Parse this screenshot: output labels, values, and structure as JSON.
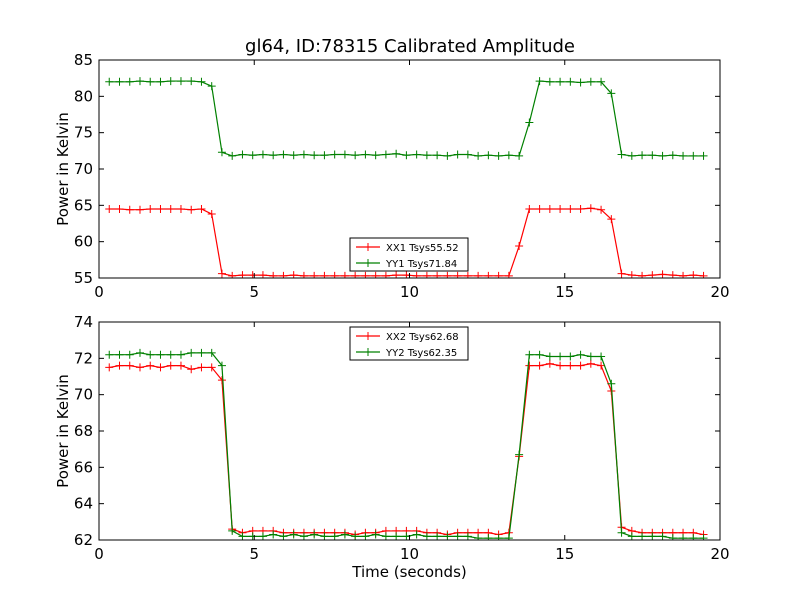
{
  "title": "gl64, ID:78315 Calibrated Amplitude",
  "chart_data": [
    {
      "type": "line",
      "xlabel": "",
      "ylabel": "Power in Kelvin",
      "xlim": [
        0,
        20
      ],
      "ylim": [
        55,
        85
      ],
      "xticks": [
        0,
        5,
        10,
        15,
        20
      ],
      "yticks": [
        55,
        60,
        65,
        70,
        75,
        80,
        85
      ],
      "grid": false,
      "legend_position": "lower-center",
      "series": [
        {
          "name": "XX1 Tsys55.52",
          "color": "#ff0000",
          "x": [
            0.33,
            0.66,
            0.99,
            1.32,
            1.65,
            1.98,
            2.31,
            2.64,
            2.97,
            3.3,
            3.63,
            3.96,
            4.29,
            4.62,
            4.95,
            5.28,
            5.61,
            5.94,
            6.27,
            6.6,
            6.93,
            7.26,
            7.59,
            7.92,
            8.25,
            8.58,
            8.91,
            9.24,
            9.57,
            9.9,
            10.23,
            10.56,
            10.89,
            11.22,
            11.55,
            11.88,
            12.21,
            12.54,
            12.87,
            13.2,
            13.53,
            13.86,
            14.19,
            14.52,
            14.85,
            15.18,
            15.51,
            15.84,
            16.17,
            16.5,
            16.83,
            17.16,
            17.49,
            17.82,
            18.15,
            18.48,
            18.81,
            19.14,
            19.47
          ],
          "y": [
            64.5,
            64.5,
            64.4,
            64.4,
            64.5,
            64.5,
            64.5,
            64.5,
            64.4,
            64.5,
            63.8,
            55.6,
            55.3,
            55.4,
            55.4,
            55.4,
            55.3,
            55.3,
            55.4,
            55.3,
            55.3,
            55.3,
            55.3,
            55.3,
            55.3,
            55.3,
            55.3,
            55.3,
            55.4,
            55.4,
            55.3,
            55.3,
            55.3,
            55.3,
            55.3,
            55.3,
            55.3,
            55.3,
            55.3,
            55.3,
            59.4,
            64.5,
            64.5,
            64.5,
            64.5,
            64.5,
            64.5,
            64.6,
            64.4,
            63.1,
            55.6,
            55.4,
            55.3,
            55.4,
            55.5,
            55.4,
            55.3,
            55.4,
            55.3
          ]
        },
        {
          "name": "YY1 Tsys71.84",
          "color": "#008000",
          "x": [
            0.33,
            0.66,
            0.99,
            1.32,
            1.65,
            1.98,
            2.31,
            2.64,
            2.97,
            3.3,
            3.63,
            3.96,
            4.29,
            4.62,
            4.95,
            5.28,
            5.61,
            5.94,
            6.27,
            6.6,
            6.93,
            7.26,
            7.59,
            7.92,
            8.25,
            8.58,
            8.91,
            9.24,
            9.57,
            9.9,
            10.23,
            10.56,
            10.89,
            11.22,
            11.55,
            11.88,
            12.21,
            12.54,
            12.87,
            13.2,
            13.53,
            13.86,
            14.19,
            14.52,
            14.85,
            15.18,
            15.51,
            15.84,
            16.17,
            16.5,
            16.83,
            17.16,
            17.49,
            17.82,
            18.15,
            18.48,
            18.81,
            19.14,
            19.47
          ],
          "y": [
            82.0,
            82.0,
            82.0,
            82.1,
            82.0,
            82.0,
            82.1,
            82.1,
            82.1,
            82.0,
            81.4,
            72.3,
            71.8,
            72.0,
            71.9,
            72.0,
            71.9,
            72.0,
            71.9,
            72.0,
            71.9,
            71.9,
            72.0,
            72.0,
            71.9,
            72.0,
            71.9,
            72.0,
            72.1,
            71.9,
            72.0,
            71.9,
            71.9,
            71.8,
            72.0,
            72.0,
            71.8,
            71.9,
            71.8,
            71.9,
            71.8,
            76.4,
            82.1,
            82.0,
            82.0,
            82.0,
            81.9,
            82.0,
            82.0,
            80.4,
            72.0,
            71.8,
            71.9,
            71.9,
            71.8,
            71.9,
            71.8,
            71.8,
            71.8
          ]
        }
      ]
    },
    {
      "type": "line",
      "xlabel": "Time (seconds)",
      "ylabel": "Power in Kelvin",
      "xlim": [
        0,
        20
      ],
      "ylim": [
        62,
        74
      ],
      "xticks": [
        0,
        5,
        10,
        15,
        20
      ],
      "yticks": [
        62,
        64,
        66,
        68,
        70,
        72,
        74
      ],
      "grid": false,
      "legend_position": "upper-center",
      "series": [
        {
          "name": "XX2 Tsys62.68",
          "color": "#ff0000",
          "x": [
            0.33,
            0.66,
            0.99,
            1.32,
            1.65,
            1.98,
            2.31,
            2.64,
            2.97,
            3.3,
            3.63,
            3.96,
            4.29,
            4.62,
            4.95,
            5.28,
            5.61,
            5.94,
            6.27,
            6.6,
            6.93,
            7.26,
            7.59,
            7.92,
            8.25,
            8.58,
            8.91,
            9.24,
            9.57,
            9.9,
            10.23,
            10.56,
            10.89,
            11.22,
            11.55,
            11.88,
            12.21,
            12.54,
            12.87,
            13.2,
            13.53,
            13.86,
            14.19,
            14.52,
            14.85,
            15.18,
            15.51,
            15.84,
            16.17,
            16.5,
            16.83,
            17.16,
            17.49,
            17.82,
            18.15,
            18.48,
            18.81,
            19.14,
            19.47
          ],
          "y": [
            71.5,
            71.6,
            71.6,
            71.5,
            71.6,
            71.5,
            71.6,
            71.6,
            71.4,
            71.5,
            71.5,
            70.8,
            62.6,
            62.4,
            62.5,
            62.5,
            62.5,
            62.4,
            62.4,
            62.4,
            62.4,
            62.4,
            62.4,
            62.4,
            62.3,
            62.4,
            62.4,
            62.5,
            62.5,
            62.5,
            62.5,
            62.4,
            62.4,
            62.3,
            62.4,
            62.4,
            62.4,
            62.4,
            62.3,
            62.4,
            66.6,
            71.6,
            71.6,
            71.7,
            71.6,
            71.6,
            71.6,
            71.7,
            71.6,
            70.2,
            62.7,
            62.5,
            62.4,
            62.4,
            62.4,
            62.4,
            62.4,
            62.4,
            62.3
          ]
        },
        {
          "name": "YY2 Tsys62.35",
          "color": "#008000",
          "x": [
            0.33,
            0.66,
            0.99,
            1.32,
            1.65,
            1.98,
            2.31,
            2.64,
            2.97,
            3.3,
            3.63,
            3.96,
            4.29,
            4.62,
            4.95,
            5.28,
            5.61,
            5.94,
            6.27,
            6.6,
            6.93,
            7.26,
            7.59,
            7.92,
            8.25,
            8.58,
            8.91,
            9.24,
            9.57,
            9.9,
            10.23,
            10.56,
            10.89,
            11.22,
            11.55,
            11.88,
            12.21,
            12.54,
            12.87,
            13.2,
            13.53,
            13.86,
            14.19,
            14.52,
            14.85,
            15.18,
            15.51,
            15.84,
            16.17,
            16.5,
            16.83,
            17.16,
            17.49,
            17.82,
            18.15,
            18.48,
            18.81,
            19.14,
            19.47
          ],
          "y": [
            72.2,
            72.2,
            72.2,
            72.3,
            72.2,
            72.2,
            72.2,
            72.2,
            72.3,
            72.3,
            72.3,
            71.6,
            62.5,
            62.2,
            62.2,
            62.2,
            62.3,
            62.2,
            62.3,
            62.2,
            62.3,
            62.2,
            62.2,
            62.3,
            62.2,
            62.2,
            62.3,
            62.2,
            62.2,
            62.2,
            62.3,
            62.2,
            62.2,
            62.2,
            62.2,
            62.2,
            62.1,
            62.1,
            62.1,
            62.1,
            66.7,
            72.2,
            72.2,
            72.1,
            72.1,
            72.1,
            72.2,
            72.1,
            72.1,
            70.6,
            62.4,
            62.2,
            62.2,
            62.2,
            62.2,
            62.1,
            62.1,
            62.1,
            62.1
          ]
        }
      ]
    }
  ]
}
